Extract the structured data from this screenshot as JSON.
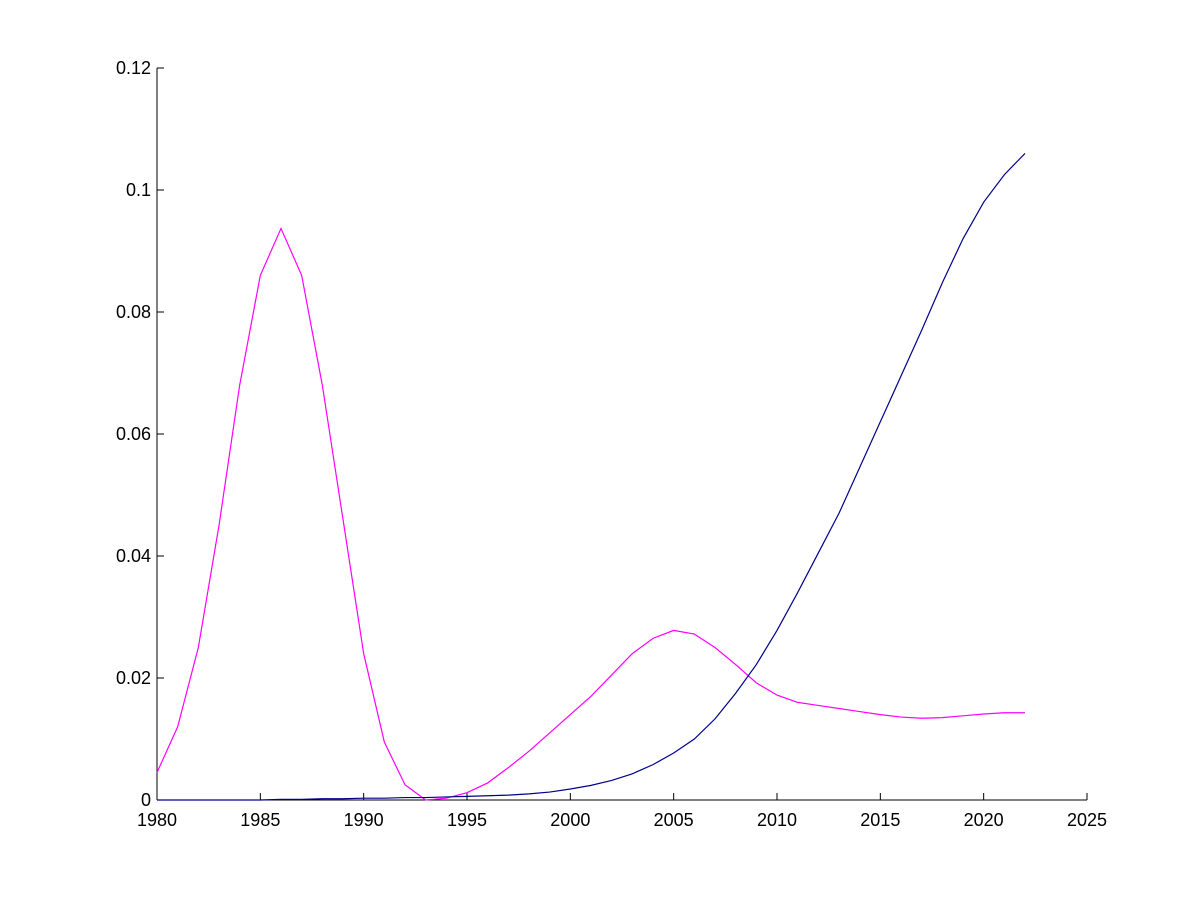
{
  "chart_data": {
    "type": "line",
    "title": "",
    "xlabel": "",
    "ylabel": "",
    "xlim": [
      1980,
      2025
    ],
    "ylim": [
      0,
      0.12
    ],
    "x_ticks": [
      1980,
      1985,
      1990,
      1995,
      2000,
      2005,
      2010,
      2015,
      2020,
      2025
    ],
    "x_tick_labels": [
      "1980",
      "1985",
      "1990",
      "1995",
      "2000",
      "2005",
      "2010",
      "2015",
      "2020",
      "2025"
    ],
    "y_ticks": [
      0,
      0.02,
      0.04,
      0.06,
      0.08,
      0.1,
      0.12
    ],
    "y_tick_labels": [
      "0",
      "0.02",
      "0.04",
      "0.06",
      "0.08",
      "0.1",
      "0.12"
    ],
    "grid": false,
    "legend": "none",
    "series": [
      {
        "color": "#ff00ff",
        "x": [
          1980,
          1981,
          1982,
          1983,
          1984,
          1985,
          1986,
          1987,
          1988,
          1989,
          1990,
          1991,
          1992,
          1993,
          1994,
          1995,
          1996,
          1997,
          1998,
          1999,
          2000,
          2001,
          2002,
          2003,
          2004,
          2005,
          2006,
          2007,
          2008,
          2009,
          2010,
          2011,
          2012,
          2013,
          2014,
          2015,
          2016,
          2017,
          2018,
          2019,
          2020,
          2021,
          2022
        ],
        "y": [
          0.0045,
          0.012,
          0.025,
          0.045,
          0.068,
          0.086,
          0.0937,
          0.086,
          0.068,
          0.046,
          0.024,
          0.0095,
          0.0025,
          0.0,
          0.0003,
          0.0012,
          0.0028,
          0.0053,
          0.008,
          0.011,
          0.014,
          0.017,
          0.0205,
          0.024,
          0.0265,
          0.0278,
          0.0272,
          0.025,
          0.0222,
          0.0192,
          0.0172,
          0.016,
          0.0155,
          0.015,
          0.0145,
          0.014,
          0.0136,
          0.0134,
          0.0135,
          0.0138,
          0.0141,
          0.0143,
          0.0143
        ]
      },
      {
        "color": "#00008b",
        "x": [
          1980,
          1981,
          1982,
          1983,
          1984,
          1985,
          1986,
          1987,
          1988,
          1989,
          1990,
          1991,
          1992,
          1993,
          1994,
          1995,
          1996,
          1997,
          1998,
          1999,
          2000,
          2001,
          2002,
          2003,
          2004,
          2005,
          2006,
          2007,
          2008,
          2009,
          2010,
          2011,
          2012,
          2013,
          2014,
          2015,
          2016,
          2017,
          2018,
          2019,
          2020,
          2021,
          2022
        ],
        "y": [
          0.0,
          0.0,
          0.0,
          0.0,
          0.0,
          0.0,
          0.0001,
          0.0001,
          0.0002,
          0.0002,
          0.0003,
          0.0003,
          0.0004,
          0.0004,
          0.0005,
          0.0006,
          0.0007,
          0.0008,
          0.001,
          0.0013,
          0.0018,
          0.0024,
          0.0032,
          0.0043,
          0.0058,
          0.0077,
          0.01,
          0.0133,
          0.0175,
          0.0222,
          0.0278,
          0.034,
          0.0405,
          0.047,
          0.0545,
          0.062,
          0.0695,
          0.077,
          0.0848,
          0.092,
          0.098,
          0.1025,
          0.106
        ]
      }
    ]
  }
}
